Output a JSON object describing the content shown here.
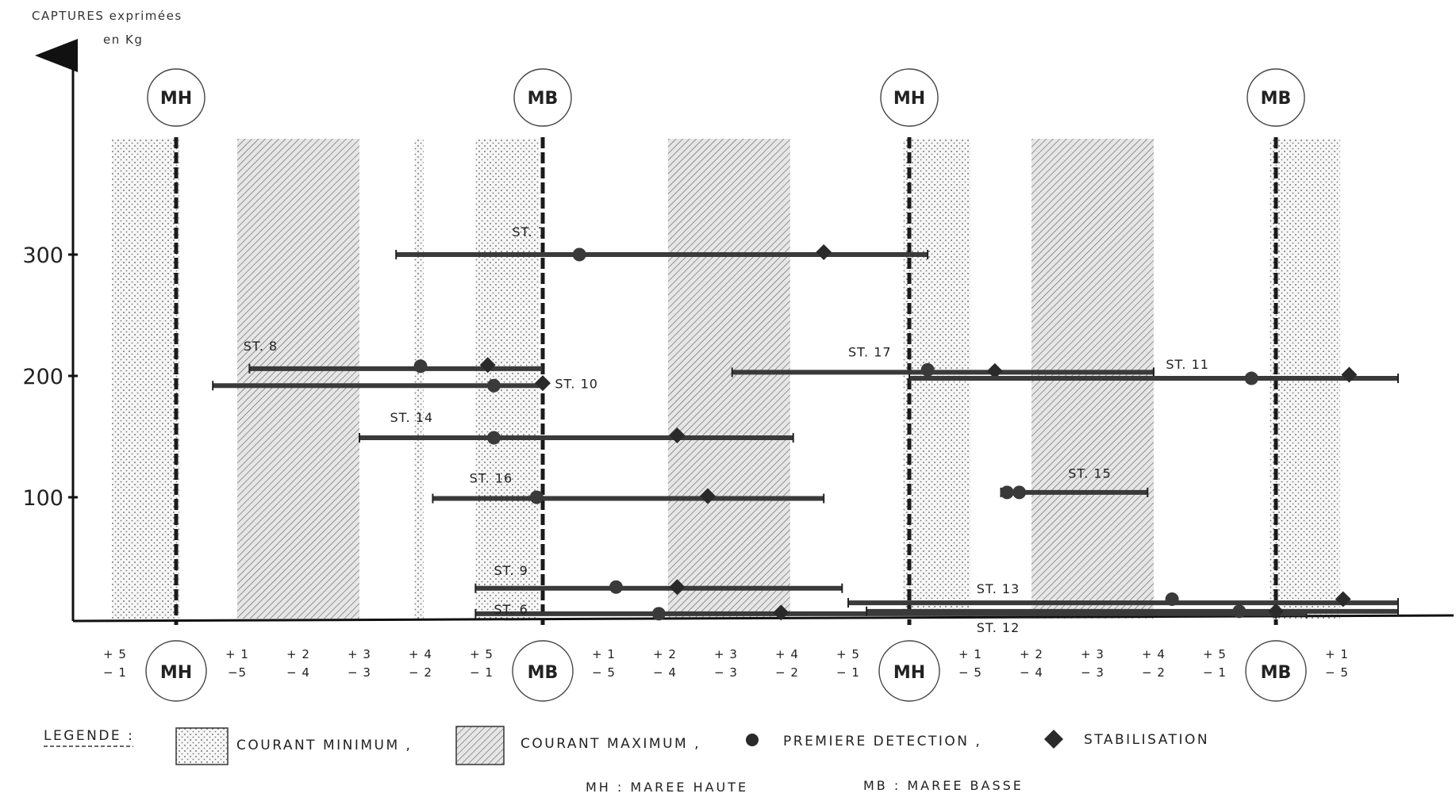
{
  "chart_data": {
    "type": "line",
    "ylabel": [
      "CAPTURES exprimées",
      "en  Kg"
    ],
    "yticks": [
      100,
      200,
      300
    ],
    "ylim": [
      0,
      400
    ],
    "xlim": [
      0,
      24
    ],
    "x_tick_labels": [
      {
        "x": 0,
        "top": "+ 5",
        "bottom": "− 1"
      },
      {
        "x": 2,
        "top": "+ 1",
        "bottom": "−5"
      },
      {
        "x": 3,
        "top": "+ 2",
        "bottom": "− 4"
      },
      {
        "x": 4,
        "top": "+ 3",
        "bottom": "− 3"
      },
      {
        "x": 5,
        "top": "+ 4",
        "bottom": "− 2"
      },
      {
        "x": 6,
        "top": "+ 5",
        "bottom": "− 1"
      },
      {
        "x": 8,
        "top": "+ 1",
        "bottom": "− 5"
      },
      {
        "x": 9,
        "top": "+ 2",
        "bottom": "− 4"
      },
      {
        "x": 10,
        "top": "+ 3",
        "bottom": "− 3"
      },
      {
        "x": 11,
        "top": "+ 4",
        "bottom": "− 2"
      },
      {
        "x": 12,
        "top": "+ 5",
        "bottom": "− 1"
      },
      {
        "x": 14,
        "top": "+ 1",
        "bottom": "− 5"
      },
      {
        "x": 15,
        "top": "+ 2",
        "bottom": "− 4"
      },
      {
        "x": 16,
        "top": "+ 3",
        "bottom": "− 3"
      },
      {
        "x": 17,
        "top": "+ 4",
        "bottom": "− 2"
      },
      {
        "x": 18,
        "top": "+ 5",
        "bottom": "− 1"
      },
      {
        "x": 20,
        "top": "+ 1",
        "bottom": "− 5"
      }
    ],
    "tide_marks": [
      {
        "x": 1,
        "label": "MH"
      },
      {
        "x": 7,
        "label": "MB"
      },
      {
        "x": 13,
        "label": "MH"
      },
      {
        "x": 19,
        "label": "MB"
      }
    ],
    "current_min_bands": [
      [
        -0.05,
        1.05
      ],
      [
        4.9,
        5.05
      ],
      [
        5.9,
        6.95
      ],
      [
        12.9,
        14.0
      ],
      [
        18.9,
        20.05
      ]
    ],
    "current_max_bands": [
      [
        2.0,
        4.0
      ],
      [
        9.05,
        11.05
      ],
      [
        15.0,
        17.0
      ]
    ],
    "series": [
      {
        "name": "ST. 7",
        "x_range": [
          4.6,
          13.3
        ],
        "y": 300,
        "first_detection": [
          {
            "x": 7.6,
            "y": 300
          }
        ],
        "stabilisation": [
          {
            "x": 11.6,
            "y": 302
          }
        ]
      },
      {
        "name": "ST. 8",
        "x_range": [
          2.2,
          7.0
        ],
        "y": 206,
        "first_detection": [
          {
            "x": 5.0,
            "y": 208
          }
        ],
        "stabilisation": [
          {
            "x": 6.1,
            "y": 209
          }
        ]
      },
      {
        "name": "ST. 10",
        "x_range": [
          1.6,
          7.0
        ],
        "y": 192,
        "first_detection": [
          {
            "x": 6.2,
            "y": 192
          }
        ],
        "stabilisation": [
          {
            "x": 7.0,
            "y": 194
          }
        ]
      },
      {
        "name": "ST. 14",
        "x_range": [
          4.0,
          11.1
        ],
        "y": 149,
        "first_detection": [
          {
            "x": 6.2,
            "y": 149
          }
        ],
        "stabilisation": [
          {
            "x": 9.2,
            "y": 151
          }
        ]
      },
      {
        "name": "ST. 16",
        "x_range": [
          5.2,
          11.6
        ],
        "y": 99,
        "first_detection": [
          {
            "x": 6.9,
            "y": 100
          }
        ],
        "stabilisation": [
          {
            "x": 9.7,
            "y": 101
          }
        ]
      },
      {
        "name": "ST. 17",
        "x_range": [
          10.1,
          17.0
        ],
        "y": 203,
        "first_detection": [
          {
            "x": 13.3,
            "y": 205
          }
        ],
        "stabilisation": [
          {
            "x": 14.4,
            "y": 204
          }
        ]
      },
      {
        "name": "ST. 11",
        "x_range": [
          13.0,
          21.0
        ],
        "y": 198,
        "first_detection": [
          {
            "x": 18.6,
            "y": 198
          }
        ],
        "stabilisation": [
          {
            "x": 20.2,
            "y": 201
          }
        ]
      },
      {
        "name": "ST. 15",
        "x_range": [
          14.5,
          16.9
        ],
        "y": 104,
        "first_detection": [
          {
            "x": 14.6,
            "y": 104
          },
          {
            "x": 14.8,
            "y": 104
          }
        ],
        "stabilisation": []
      },
      {
        "name": "ST. 9",
        "x_range": [
          5.9,
          11.9
        ],
        "y": 25,
        "first_detection": [
          {
            "x": 8.2,
            "y": 26
          }
        ],
        "stabilisation": [
          {
            "x": 9.2,
            "y": 26
          }
        ]
      },
      {
        "name": "ST. 6",
        "x_range": [
          5.9,
          19.5
        ],
        "y": 4,
        "first_detection": [
          {
            "x": 8.9,
            "y": 4
          }
        ],
        "stabilisation": [
          {
            "x": 10.9,
            "y": 5
          }
        ]
      },
      {
        "name": "ST. 13",
        "x_range": [
          12.0,
          21.0
        ],
        "y": 13,
        "first_detection": [
          {
            "x": 17.3,
            "y": 16
          }
        ],
        "stabilisation": [
          {
            "x": 20.1,
            "y": 16
          }
        ]
      },
      {
        "name": "ST. 12",
        "x_range": [
          12.3,
          21.0
        ],
        "y": 6,
        "first_detection": [
          {
            "x": 18.4,
            "y": 6
          }
        ],
        "stabilisation": [
          {
            "x": 19.0,
            "y": 6
          }
        ]
      }
    ],
    "legend": {
      "title": "LEGENDE :",
      "min_current": "COURANT  MINIMUM  ,",
      "max_current": "COURANT  MAXIMUM  ,",
      "first_detection": "PREMIERE  DETECTION  ,",
      "stabilisation": "STABILISATION"
    },
    "footer": [
      "MH : MAREE  HAUTE",
      "MB : MAREE  BASSE"
    ],
    "colors": {
      "ink": "#222222",
      "series": "#3a3a3a",
      "background": "#ffffff"
    }
  }
}
